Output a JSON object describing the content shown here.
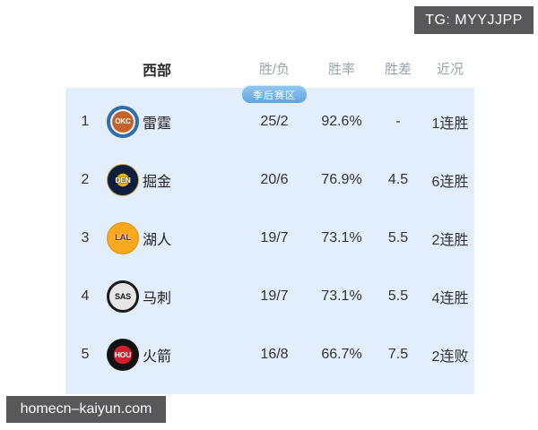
{
  "badges": {
    "tg_label": "TG: MYYJJPP",
    "watermark_label": "homecn–kaiyun.com",
    "playoff_zone_label": "季后赛区"
  },
  "table": {
    "headers": {
      "conference": "西部",
      "wl": "胜/负",
      "pct": "胜率",
      "gb": "胜差",
      "recent": "近况"
    },
    "rows": [
      {
        "rank": "1",
        "abbr": "OKC",
        "name": "雷霆",
        "wl": "25/2",
        "pct": "92.6%",
        "gb": "-",
        "recent": "1连胜",
        "logo_colors": {
          "ring": "#2f6fae",
          "ball": "#c2622f",
          "text": "#ffffff"
        }
      },
      {
        "rank": "2",
        "abbr": "DEN",
        "name": "掘金",
        "wl": "20/6",
        "pct": "76.9%",
        "gb": "4.5",
        "recent": "6连胜",
        "logo_colors": {
          "bg": "#0e1d40",
          "accent": "#f0b310",
          "text": "#ffffff"
        }
      },
      {
        "rank": "3",
        "abbr": "LAL",
        "name": "湖人",
        "wl": "19/7",
        "pct": "73.1%",
        "gb": "5.5",
        "recent": "2连胜",
        "logo_colors": {
          "bg": "#f7a81d",
          "text": "#5a2a82"
        }
      },
      {
        "rank": "4",
        "abbr": "SAS",
        "name": "马刺",
        "wl": "19/7",
        "pct": "73.1%",
        "gb": "5.5",
        "recent": "4连胜",
        "logo_colors": {
          "bg": "#e6e6e6",
          "ring": "#1a1a1a",
          "text": "#111111"
        }
      },
      {
        "rank": "5",
        "abbr": "HOU",
        "name": "火箭",
        "wl": "16/8",
        "pct": "66.7%",
        "gb": "7.5",
        "recent": "2连败",
        "logo_colors": {
          "bg": "#121212",
          "accent": "#cf1f2e",
          "text": "#ffffff"
        }
      }
    ]
  },
  "colors": {
    "panel_bg": "#e3eefc",
    "badge_bg": "#58585a",
    "playoff_badge_blue": "#6fb0e6",
    "header_text": "#9aa3ad",
    "body_text": "#333333"
  }
}
